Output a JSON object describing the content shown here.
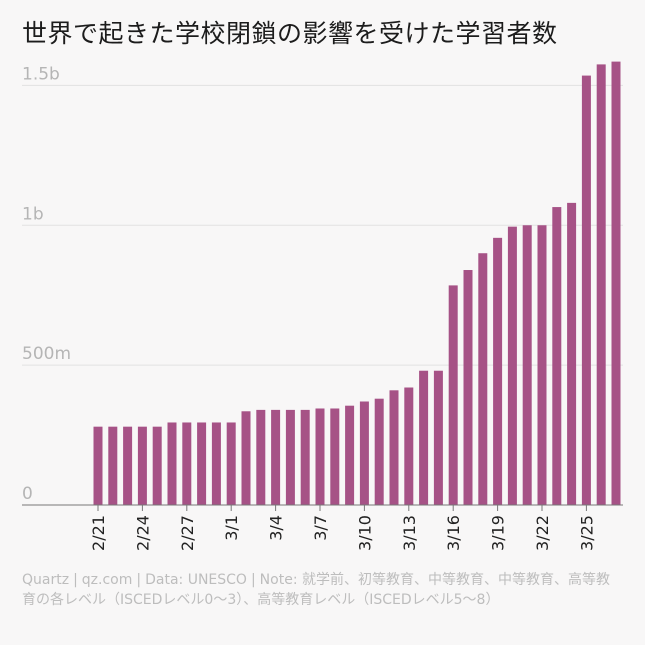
{
  "title": "世界で起きた学校閉鎖の影響を受けた学習者数",
  "footer": {
    "source": "Quartz",
    "site": "qz.com",
    "data": "Data: UNESCO",
    "note": "Note: 就学前、初等教育、中等教育、中等教育、高等教育の各レベル（ISCEDレベル0〜3）、高等教育レベル（ISCEDレベル5〜8）"
  },
  "colors": {
    "bar": "#a65286",
    "grid": "#e2e2e2",
    "axis_label": "#b5b5b5",
    "tick_label": "#222222"
  },
  "chart_data": {
    "type": "bar",
    "title": "世界で起きた学校閉鎖の影響を受けた学習者数",
    "xlabel": "",
    "ylabel": "",
    "ylim": [
      0,
      1580000000
    ],
    "yticks": [
      0,
      500000000,
      1000000000,
      1500000000
    ],
    "ytick_labels": [
      "0",
      "500m",
      "1b",
      "1.5b"
    ],
    "grid": true,
    "categories": [
      "2/21",
      "2/22",
      "2/23",
      "2/24",
      "2/25",
      "2/26",
      "2/27",
      "2/28",
      "2/29",
      "3/1",
      "3/2",
      "3/3",
      "3/4",
      "3/5",
      "3/6",
      "3/7",
      "3/8",
      "3/9",
      "3/10",
      "3/11",
      "3/12",
      "3/13",
      "3/14",
      "3/15",
      "3/16",
      "3/17",
      "3/18",
      "3/19",
      "3/20",
      "3/21",
      "3/22",
      "3/23",
      "3/24",
      "3/25",
      "3/26",
      "3/27"
    ],
    "xtick_labels": [
      "2/21",
      "2/24",
      "2/27",
      "3/1",
      "3/4",
      "3/7",
      "3/10",
      "3/13",
      "3/16",
      "3/19",
      "3/22",
      "3/25"
    ],
    "values": [
      280000000,
      280000000,
      280000000,
      280000000,
      280000000,
      295000000,
      295000000,
      295000000,
      295000000,
      295000000,
      335000000,
      340000000,
      340000000,
      340000000,
      340000000,
      345000000,
      345000000,
      355000000,
      370000000,
      380000000,
      410000000,
      420000000,
      480000000,
      480000000,
      785000000,
      840000000,
      900000000,
      955000000,
      995000000,
      1000000000,
      1000000000,
      1065000000,
      1080000000,
      1535000000,
      1575000000,
      1585000000
    ]
  }
}
